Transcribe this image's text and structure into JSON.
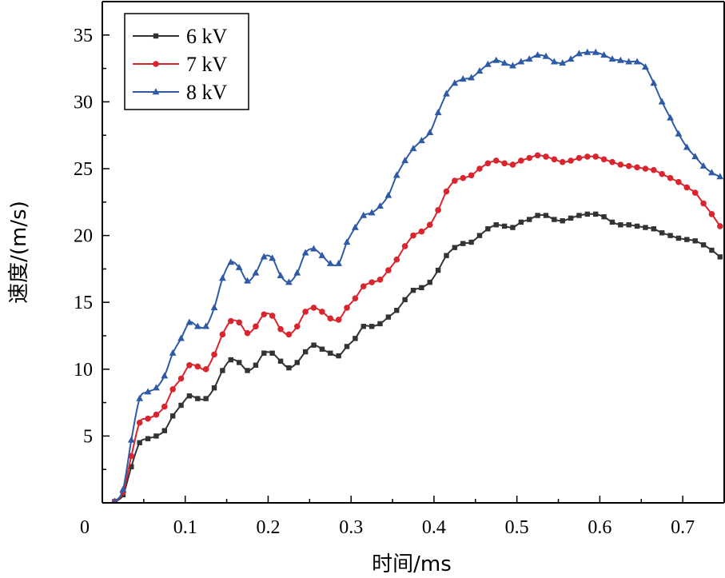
{
  "chart_data": {
    "type": "line",
    "title": "",
    "xlabel": "时间/ms",
    "ylabel": "速度/(m/s)",
    "xlim": [
      0,
      0.75
    ],
    "ylim": [
      0,
      37.5
    ],
    "xticks": [
      0.1,
      0.2,
      0.3,
      0.4,
      0.5,
      0.6,
      0.7
    ],
    "yticks": [
      5,
      10,
      15,
      20,
      25,
      30,
      35
    ],
    "origin_label": "0",
    "grid": false,
    "legend_position": "top-left",
    "series": [
      {
        "name": "6 kV",
        "color": "#333333",
        "marker": "square",
        "x": [
          0.015,
          0.025,
          0.035,
          0.045,
          0.055,
          0.065,
          0.075,
          0.085,
          0.095,
          0.105,
          0.115,
          0.125,
          0.135,
          0.145,
          0.155,
          0.165,
          0.175,
          0.185,
          0.195,
          0.205,
          0.215,
          0.225,
          0.235,
          0.245,
          0.255,
          0.265,
          0.275,
          0.285,
          0.295,
          0.305,
          0.315,
          0.325,
          0.335,
          0.345,
          0.355,
          0.365,
          0.375,
          0.385,
          0.395,
          0.405,
          0.415,
          0.425,
          0.435,
          0.445,
          0.455,
          0.465,
          0.475,
          0.485,
          0.495,
          0.505,
          0.515,
          0.525,
          0.535,
          0.545,
          0.555,
          0.565,
          0.575,
          0.585,
          0.595,
          0.605,
          0.615,
          0.625,
          0.635,
          0.645,
          0.655,
          0.665,
          0.675,
          0.685,
          0.695,
          0.705,
          0.715,
          0.725,
          0.735,
          0.745
        ],
        "y": [
          0.1,
          0.6,
          2.7,
          4.5,
          4.8,
          5.0,
          5.4,
          6.5,
          7.3,
          8.0,
          7.8,
          7.8,
          8.6,
          9.9,
          10.7,
          10.5,
          9.9,
          10.3,
          11.2,
          11.2,
          10.6,
          10.1,
          10.5,
          11.3,
          11.8,
          11.5,
          11.2,
          11.0,
          11.7,
          12.3,
          13.2,
          13.2,
          13.4,
          13.9,
          14.4,
          15.2,
          15.9,
          16.1,
          16.5,
          17.4,
          18.5,
          19.1,
          19.4,
          19.5,
          20.0,
          20.5,
          20.8,
          20.7,
          20.6,
          21.0,
          21.2,
          21.5,
          21.5,
          21.2,
          21.1,
          21.3,
          21.5,
          21.6,
          21.6,
          21.4,
          21.0,
          20.8,
          20.8,
          20.7,
          20.6,
          20.5,
          20.2,
          20.0,
          19.8,
          19.7,
          19.6,
          19.3,
          18.9,
          18.4
        ]
      },
      {
        "name": "7 kV",
        "color": "#d9252e",
        "marker": "circle",
        "x": [
          0.015,
          0.025,
          0.035,
          0.045,
          0.055,
          0.065,
          0.075,
          0.085,
          0.095,
          0.105,
          0.115,
          0.125,
          0.135,
          0.145,
          0.155,
          0.165,
          0.175,
          0.185,
          0.195,
          0.205,
          0.215,
          0.225,
          0.235,
          0.245,
          0.255,
          0.265,
          0.275,
          0.285,
          0.295,
          0.305,
          0.315,
          0.325,
          0.335,
          0.345,
          0.355,
          0.365,
          0.375,
          0.385,
          0.395,
          0.405,
          0.415,
          0.425,
          0.435,
          0.445,
          0.455,
          0.465,
          0.475,
          0.485,
          0.495,
          0.505,
          0.515,
          0.525,
          0.535,
          0.545,
          0.555,
          0.565,
          0.575,
          0.585,
          0.595,
          0.605,
          0.615,
          0.625,
          0.635,
          0.645,
          0.655,
          0.665,
          0.675,
          0.685,
          0.695,
          0.705,
          0.715,
          0.725,
          0.735,
          0.745
        ],
        "y": [
          0.1,
          0.8,
          3.5,
          6.0,
          6.3,
          6.6,
          7.2,
          8.5,
          9.3,
          10.3,
          10.2,
          10.0,
          11.1,
          12.6,
          13.6,
          13.5,
          12.7,
          13.2,
          14.1,
          14.0,
          13.0,
          12.6,
          13.2,
          14.3,
          14.6,
          14.3,
          13.8,
          13.7,
          14.6,
          15.3,
          16.2,
          16.5,
          16.7,
          17.4,
          18.2,
          19.2,
          20.0,
          20.3,
          20.8,
          21.9,
          23.3,
          24.1,
          24.3,
          24.5,
          25.0,
          25.4,
          25.6,
          25.4,
          25.3,
          25.6,
          25.8,
          26.0,
          25.9,
          25.7,
          25.5,
          25.6,
          25.8,
          25.9,
          25.9,
          25.7,
          25.5,
          25.3,
          25.2,
          25.1,
          25.0,
          24.9,
          24.6,
          24.3,
          24.0,
          23.6,
          23.2,
          22.4,
          21.6,
          20.7
        ]
      },
      {
        "name": "8 kV",
        "color": "#2f5aa6",
        "marker": "triangle",
        "x": [
          0.015,
          0.025,
          0.035,
          0.045,
          0.055,
          0.065,
          0.075,
          0.085,
          0.095,
          0.105,
          0.115,
          0.125,
          0.135,
          0.145,
          0.155,
          0.165,
          0.175,
          0.185,
          0.195,
          0.205,
          0.215,
          0.225,
          0.235,
          0.245,
          0.255,
          0.265,
          0.275,
          0.285,
          0.295,
          0.305,
          0.315,
          0.325,
          0.335,
          0.345,
          0.355,
          0.365,
          0.375,
          0.385,
          0.395,
          0.405,
          0.415,
          0.425,
          0.435,
          0.445,
          0.455,
          0.465,
          0.475,
          0.485,
          0.495,
          0.505,
          0.515,
          0.525,
          0.535,
          0.545,
          0.555,
          0.565,
          0.575,
          0.585,
          0.595,
          0.605,
          0.615,
          0.625,
          0.635,
          0.645,
          0.655,
          0.665,
          0.675,
          0.685,
          0.695,
          0.705,
          0.715,
          0.725,
          0.735,
          0.745
        ],
        "y": [
          0.1,
          1.0,
          4.7,
          7.8,
          8.3,
          8.6,
          9.5,
          11.2,
          12.3,
          13.5,
          13.2,
          13.2,
          14.6,
          16.8,
          18.0,
          17.6,
          16.6,
          17.2,
          18.4,
          18.3,
          17.0,
          16.5,
          17.2,
          18.7,
          19.0,
          18.5,
          17.9,
          17.9,
          19.5,
          20.6,
          21.5,
          21.7,
          22.2,
          23.0,
          24.5,
          25.6,
          26.5,
          27.1,
          27.7,
          29.2,
          30.6,
          31.4,
          31.7,
          31.8,
          32.3,
          32.8,
          33.1,
          32.9,
          32.7,
          33.0,
          33.2,
          33.5,
          33.4,
          33.0,
          32.9,
          33.2,
          33.6,
          33.7,
          33.7,
          33.5,
          33.2,
          33.1,
          33.0,
          33.0,
          32.6,
          31.4,
          30.0,
          28.8,
          27.6,
          26.6,
          25.9,
          25.2,
          24.7,
          24.4
        ]
      }
    ]
  }
}
